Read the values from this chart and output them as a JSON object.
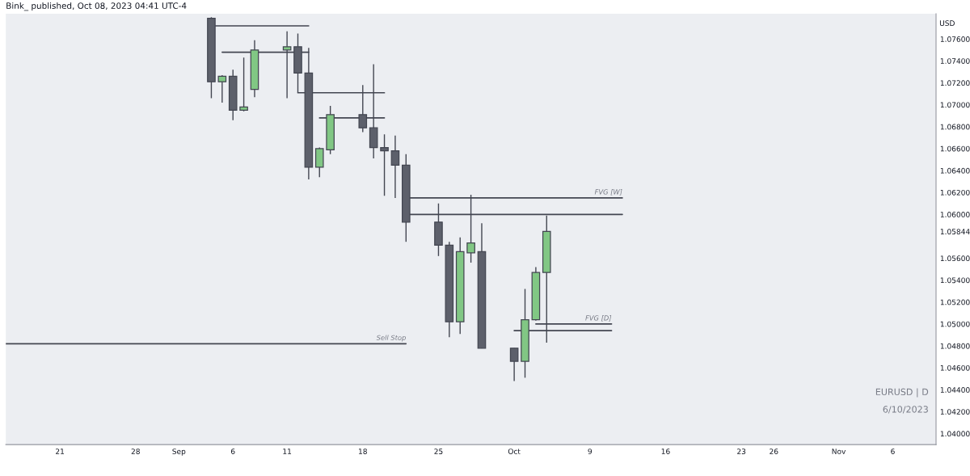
{
  "chart_data": {
    "type": "candlestick",
    "title": "Bink_ published, Oct 08, 2023 04:41 UTC-4",
    "ylabel": "USD",
    "x": [
      "2023-09-04",
      "2023-09-05",
      "2023-09-06",
      "2023-09-07",
      "2023-09-08",
      "2023-09-11",
      "2023-09-12",
      "2023-09-13",
      "2023-09-14",
      "2023-09-15",
      "2023-09-18",
      "2023-09-19",
      "2023-09-20",
      "2023-09-21",
      "2023-09-22",
      "2023-09-25",
      "2023-09-26",
      "2023-09-27",
      "2023-09-28",
      "2023-09-29",
      "2023-10-02",
      "2023-10-03",
      "2023-10-04",
      "2023-10-05"
    ],
    "ohlc": [
      [
        1.0779,
        1.078,
        1.0706,
        1.0721
      ],
      [
        1.0721,
        1.0727,
        1.0702,
        1.0726
      ],
      [
        1.0726,
        1.0732,
        1.0686,
        1.0695
      ],
      [
        1.0695,
        1.0743,
        1.0694,
        1.0698
      ],
      [
        1.0714,
        1.0759,
        1.0707,
        1.075
      ],
      [
        1.075,
        1.0767,
        1.0706,
        1.0753
      ],
      [
        1.0753,
        1.0765,
        1.0711,
        1.0729
      ],
      [
        1.0729,
        1.0752,
        1.0632,
        1.0643
      ],
      [
        1.0643,
        1.0661,
        1.0634,
        1.066
      ],
      [
        1.0659,
        1.0699,
        1.0655,
        1.0691
      ],
      [
        1.0691,
        1.0718,
        1.0675,
        1.0679
      ],
      [
        1.0679,
        1.0737,
        1.0651,
        1.0661
      ],
      [
        1.0661,
        1.0673,
        1.0617,
        1.0658
      ],
      [
        1.0658,
        1.0672,
        1.0615,
        1.0645
      ],
      [
        1.0645,
        1.0655,
        1.0575,
        1.0593
      ],
      [
        1.0593,
        1.061,
        1.0562,
        1.0572
      ],
      [
        1.0572,
        1.0575,
        1.0488,
        1.0502
      ],
      [
        1.0502,
        1.0579,
        1.0491,
        1.0566
      ],
      [
        1.0565,
        1.0618,
        1.0556,
        1.0574
      ],
      [
        1.0566,
        1.0592,
        1.0478,
        1.0478
      ],
      [
        1.0478,
        1.0478,
        1.0448,
        1.0466
      ],
      [
        1.0466,
        1.0532,
        1.0451,
        1.0504
      ],
      [
        1.0504,
        1.0552,
        1.0503,
        1.0547
      ],
      [
        1.0547,
        1.0599,
        1.0483,
        1.05844
      ]
    ],
    "colors": [
      "#5d606b",
      "#81c784",
      "#5d606b",
      "#81c784",
      "#81c784",
      "#81c784",
      "#5d606b",
      "#5d606b",
      "#81c784",
      "#81c784",
      "#5d606b",
      "#5d606b",
      "#5d606b",
      "#5d606b",
      "#5d606b",
      "#5d606b",
      "#5d606b",
      "#81c784",
      "#81c784",
      "#5d606b",
      "#5d606b",
      "#81c784",
      "#81c784",
      "#81c784"
    ],
    "series": [
      {
        "type": "line",
        "color": "#434651",
        "x": [
          "2023-09-04T09:00",
          "2023-09-13"
        ],
        "values": [
          1.0772,
          1.0772
        ]
      },
      {
        "type": "line",
        "color": "#434651",
        "x": [
          "2023-09-05",
          "2023-09-13"
        ],
        "values": [
          1.0748,
          1.0748
        ]
      },
      {
        "type": "line",
        "color": "#434651",
        "x": [
          "2023-09-12",
          "2023-09-20"
        ],
        "values": [
          1.0711,
          1.0711
        ]
      },
      {
        "type": "line",
        "color": "#434651",
        "x": [
          "2023-09-14",
          "2023-09-20"
        ],
        "values": [
          1.0688,
          1.0688
        ]
      },
      {
        "type": "line",
        "color": "#434651",
        "x": [
          "2023-09-22T09:00",
          "2023-10-12"
        ],
        "values": [
          1.0615,
          1.0615
        ]
      },
      {
        "type": "line",
        "color": "#434651",
        "x": [
          "2023-09-22T09:00",
          "2023-10-12"
        ],
        "values": [
          1.06,
          1.06
        ]
      },
      {
        "type": "line",
        "color": "#434651",
        "x": [
          "2023-10-04",
          "2023-10-11"
        ],
        "values": [
          1.05,
          1.05
        ]
      },
      {
        "type": "line",
        "color": "#434651",
        "x": [
          "2023-10-02",
          "2023-10-11"
        ],
        "values": [
          1.0494,
          1.0494
        ]
      },
      {
        "type": "line",
        "color": "#434651",
        "x": [
          "2023-08-16",
          "2023-09-22"
        ],
        "values": [
          1.0482,
          1.0482
        ]
      }
    ],
    "annotations": [
      {
        "text": "FVG [W]",
        "x": "2023-10-12",
        "y": 1.0615
      },
      {
        "text": "FVG [D]",
        "x": "2023-10-11",
        "y": 1.05
      },
      {
        "text": "Sell Stop",
        "x": "2023-09-22",
        "y": 1.0482
      },
      "6/10/2023",
      "EURUSD | D"
    ],
    "xlim": [
      "2023-08-16",
      "2023-11-10"
    ],
    "xticks": [
      {
        "value": "2023-08-21",
        "label": "21"
      },
      {
        "value": "2023-08-28",
        "label": "28"
      },
      {
        "value": "2023-09-01",
        "label": "Sep"
      },
      {
        "value": "2023-09-06",
        "label": "6"
      },
      {
        "value": "2023-09-11",
        "label": "11"
      },
      {
        "value": "2023-09-18",
        "label": "18"
      },
      {
        "value": "2023-09-25",
        "label": "25"
      },
      {
        "value": "2023-10-02",
        "label": "Oct"
      },
      {
        "value": "2023-10-09",
        "label": "9"
      },
      {
        "value": "2023-10-16",
        "label": "16"
      },
      {
        "value": "2023-10-23",
        "label": "23"
      },
      {
        "value": "2023-10-26",
        "label": "26"
      },
      {
        "value": "2023-11-01",
        "label": "Nov"
      },
      {
        "value": "2023-11-06",
        "label": "6"
      }
    ],
    "ylim": [
      1.039,
      1.0783
    ],
    "yticks": [
      {
        "value": 1.04,
        "label": "1.04000"
      },
      {
        "value": 1.042,
        "label": "1.04200"
      },
      {
        "value": 1.044,
        "label": "1.04400"
      },
      {
        "value": 1.046,
        "label": "1.04600"
      },
      {
        "value": 1.048,
        "label": "1.04800"
      },
      {
        "value": 1.05,
        "label": "1.05000"
      },
      {
        "value": 1.052,
        "label": "1.05200"
      },
      {
        "value": 1.054,
        "label": "1.05400"
      },
      {
        "value": 1.056,
        "label": "1.05600"
      },
      {
        "value": 1.05844,
        "label": "1.05844"
      },
      {
        "value": 1.06,
        "label": "1.06000"
      },
      {
        "value": 1.062,
        "label": "1.06200"
      },
      {
        "value": 1.064,
        "label": "1.06400"
      },
      {
        "value": 1.066,
        "label": "1.06600"
      },
      {
        "value": 1.068,
        "label": "1.06800"
      },
      {
        "value": 1.07,
        "label": "1.07000"
      },
      {
        "value": 1.072,
        "label": "1.07200"
      },
      {
        "value": 1.074,
        "label": "1.07400"
      },
      {
        "value": 1.076,
        "label": "1.07600"
      }
    ],
    "grid": false
  }
}
